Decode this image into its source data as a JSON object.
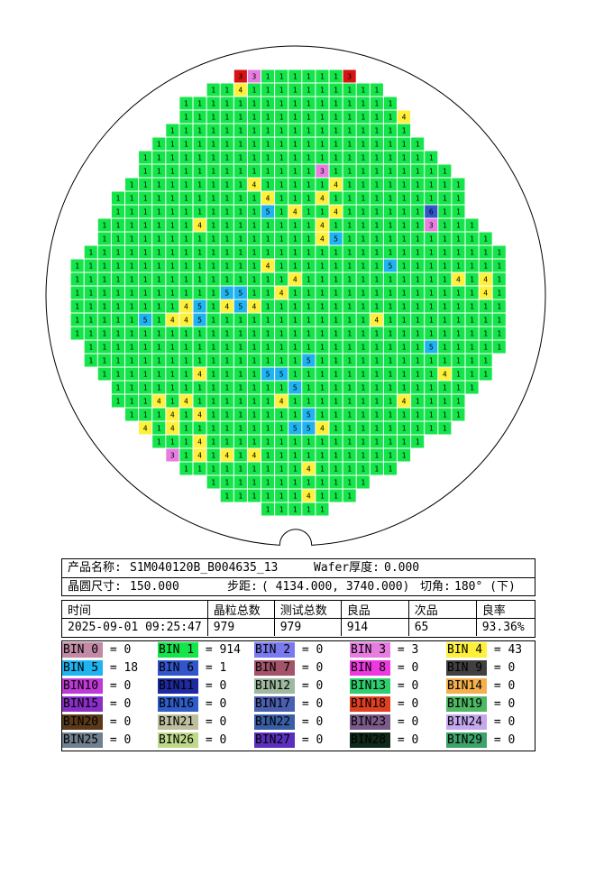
{
  "colors": {
    "bin1": "#14e54a",
    "bin3": "#e77de1",
    "bin4": "#fff13b",
    "bin5": "#1fb3f0",
    "bin6": "#3255cb",
    "bin12": "#c4c4c4",
    "bin15": "#b0c4de",
    "bin16": "#a0522d",
    "bin17": "#808000",
    "bin18": "#800080",
    "bin19": "#008080",
    "bin20": "#800000",
    "bin25": "#708090",
    "bin26": "#bfd98a",
    "bin27": "#5b2fbe",
    "bin28": "#0f2a1a",
    "bin29": "#3da36a",
    "bin9": "#404040",
    "bin10": "#c03ad6",
    "bin11": "#1f2aa0",
    "bin13": "#2fcf6f",
    "bin14": "#f5b04d",
    "bin21": "#bfbf9f",
    "bin22": "#3a5ea6",
    "bin23": "#7c5a8a",
    "bin24": "#c6a8f0",
    "bin0": "#c28aa6",
    "bin2": "#7a7af0",
    "bin7": "#a3546a",
    "bin8": "#ee38e0",
    "red": "#d61212"
  },
  "wafer": {
    "rows": [
      "--------------RRRRRRRRR",
      "------------1411111111111",
      "----------1111111111111111",
      "---------11111111111111111",
      "--------111111111111111111",
      "-------11111111111111111111",
      "------1111111111111111111111",
      "------11111111111111111111111",
      "----1111111111111111111111111",
      "----11111111111111111111111111",
      "---11111111111111111111111111",
      "--1111111111111111111111111111",
      "--11111111111111111111111111111",
      "-1111111111111111111111111111111",
      "-11111111111111111111111111111111",
      "-11111111111111111111111111111111",
      "-11111111111111111111111111111111",
      "-11111111111111111111111111111111",
      "-11111111111111111111111111111111",
      "-11111111111111111111111111111111",
      "-1111111111111111111111111111111",
      "--111111111111111111111111111111",
      "--11111111111111111111111111111",
      "---111111111111111111111111111",
      "---11111111111111111111111111",
      "----1111111111111111111111111",
      "-----11111111111111111111111",
      "------11111111111111111111",
      "-------111111111111111111",
      "--------1111111111111111",
      "----------111111111111",
      "------------1111111111",
      "--------------11111"
    ],
    "specials": [
      [
        0,
        14,
        "3"
      ],
      [
        0,
        21,
        "3"
      ],
      [
        1,
        13,
        "4"
      ],
      [
        3,
        25,
        "4"
      ],
      [
        7,
        19,
        "3"
      ],
      [
        8,
        14,
        "4"
      ],
      [
        8,
        20,
        "4"
      ],
      [
        9,
        15,
        "4"
      ],
      [
        9,
        19,
        "4"
      ],
      [
        10,
        15,
        "5"
      ],
      [
        10,
        17,
        "4"
      ],
      [
        10,
        20,
        "4"
      ],
      [
        10,
        27,
        "5"
      ],
      [
        11,
        10,
        "4"
      ],
      [
        11,
        19,
        "4"
      ],
      [
        11,
        27,
        "3"
      ],
      [
        12,
        19,
        "4"
      ],
      [
        12,
        20,
        "5"
      ],
      [
        14,
        15,
        "4"
      ],
      [
        14,
        24,
        "5"
      ],
      [
        15,
        17,
        "4"
      ],
      [
        15,
        29,
        "4"
      ],
      [
        15,
        31,
        "4"
      ],
      [
        16,
        12,
        "5"
      ],
      [
        16,
        13,
        "5"
      ],
      [
        16,
        16,
        "4"
      ],
      [
        16,
        31,
        "4"
      ],
      [
        17,
        9,
        "4"
      ],
      [
        17,
        10,
        "5"
      ],
      [
        17,
        12,
        "4"
      ],
      [
        17,
        13,
        "5"
      ],
      [
        17,
        14,
        "4"
      ],
      [
        18,
        6,
        "5"
      ],
      [
        18,
        8,
        "4"
      ],
      [
        18,
        9,
        "4"
      ],
      [
        18,
        10,
        "5"
      ],
      [
        18,
        23,
        "4"
      ],
      [
        20,
        27,
        "5"
      ],
      [
        21,
        18,
        "5"
      ],
      [
        22,
        10,
        "4"
      ],
      [
        22,
        15,
        "5"
      ],
      [
        22,
        16,
        "5"
      ],
      [
        22,
        28,
        "4"
      ],
      [
        23,
        17,
        "5"
      ],
      [
        24,
        7,
        "4"
      ],
      [
        24,
        9,
        "4"
      ],
      [
        24,
        16,
        "4"
      ],
      [
        24,
        25,
        "4"
      ],
      [
        25,
        8,
        "4"
      ],
      [
        25,
        10,
        "4"
      ],
      [
        25,
        18,
        "5"
      ],
      [
        26,
        6,
        "4"
      ],
      [
        26,
        8,
        "4"
      ],
      [
        26,
        17,
        "5"
      ],
      [
        26,
        18,
        "5"
      ],
      [
        26,
        19,
        "4"
      ],
      [
        27,
        10,
        "4"
      ],
      [
        28,
        8,
        "3"
      ],
      [
        28,
        10,
        "4"
      ],
      [
        28,
        12,
        "4"
      ],
      [
        28,
        14,
        "4"
      ],
      [
        29,
        18,
        "4"
      ],
      [
        31,
        18,
        "4"
      ],
      [
        33,
        16,
        "4"
      ],
      [
        35,
        17,
        "5"
      ]
    ]
  },
  "info": {
    "product_label": "产品名称:",
    "product_value": "S1M040120B_B004635_13",
    "thickness_label": "Wafer厚度:",
    "thickness_value": "0.000",
    "size_label": "晶圆尺寸:",
    "size_value": "150.000",
    "step_label": "步距:",
    "step_value": "( 4134.000, 3740.000)",
    "angle_label": "切角:",
    "angle_value": "180° (下)"
  },
  "stats": {
    "headers": [
      "时间",
      "晶粒总数",
      "测试总数",
      "良品",
      "次品",
      "良率"
    ],
    "values": [
      "2025-09-01 09:25:47",
      "979",
      "979",
      "914",
      "65",
      "93.36%"
    ]
  },
  "bins": [
    {
      "label": "BIN  0",
      "value": "0",
      "color": "#c28aa6"
    },
    {
      "label": "BIN  1",
      "value": "914",
      "color": "#14e54a"
    },
    {
      "label": "BIN  2",
      "value": "0",
      "color": "#7a7af0"
    },
    {
      "label": "BIN  3",
      "value": "3",
      "color": "#e77de1"
    },
    {
      "label": "BIN  4",
      "value": "43",
      "color": "#fff13b"
    },
    {
      "label": "BIN  5",
      "value": "18",
      "color": "#1fb3f0"
    },
    {
      "label": "BIN  6",
      "value": "1",
      "color": "#3255cb"
    },
    {
      "label": "BIN  7",
      "value": "0",
      "color": "#a3546a"
    },
    {
      "label": "BIN  8",
      "value": "0",
      "color": "#ee38e0"
    },
    {
      "label": "BIN  9",
      "value": "0",
      "color": "#404040"
    },
    {
      "label": "BIN10",
      "value": "0",
      "color": "#c03ad6"
    },
    {
      "label": "BIN11",
      "value": "0",
      "color": "#1f2aa0"
    },
    {
      "label": "BIN12",
      "value": "0",
      "color": "#9fb9a0"
    },
    {
      "label": "BIN13",
      "value": "0",
      "color": "#2fcf6f"
    },
    {
      "label": "BIN14",
      "value": "0",
      "color": "#f5b04d"
    },
    {
      "label": "BIN15",
      "value": "0",
      "color": "#8a2fc6"
    },
    {
      "label": "BIN16",
      "value": "0",
      "color": "#2e5cc8"
    },
    {
      "label": "BIN17",
      "value": "0",
      "color": "#4a5fb0"
    },
    {
      "label": "BIN18",
      "value": "0",
      "color": "#e0401f"
    },
    {
      "label": "BIN19",
      "value": "0",
      "color": "#4fb864"
    },
    {
      "label": "BIN20",
      "value": "0",
      "color": "#5a3a1a"
    },
    {
      "label": "BIN21",
      "value": "0",
      "color": "#bfbf9f"
    },
    {
      "label": "BIN22",
      "value": "0",
      "color": "#3a5ea6"
    },
    {
      "label": "BIN23",
      "value": "0",
      "color": "#7c5a8a"
    },
    {
      "label": "BIN24",
      "value": "0",
      "color": "#c6a8f0"
    },
    {
      "label": "BIN25",
      "value": "0",
      "color": "#708090"
    },
    {
      "label": "BIN26",
      "value": "0",
      "color": "#bfd98a"
    },
    {
      "label": "BIN27",
      "value": "0",
      "color": "#5b2fbe"
    },
    {
      "label": "BIN28",
      "value": "0",
      "color": "#0f2a1a"
    },
    {
      "label": "BIN29",
      "value": "0",
      "color": "#3da36a"
    }
  ]
}
